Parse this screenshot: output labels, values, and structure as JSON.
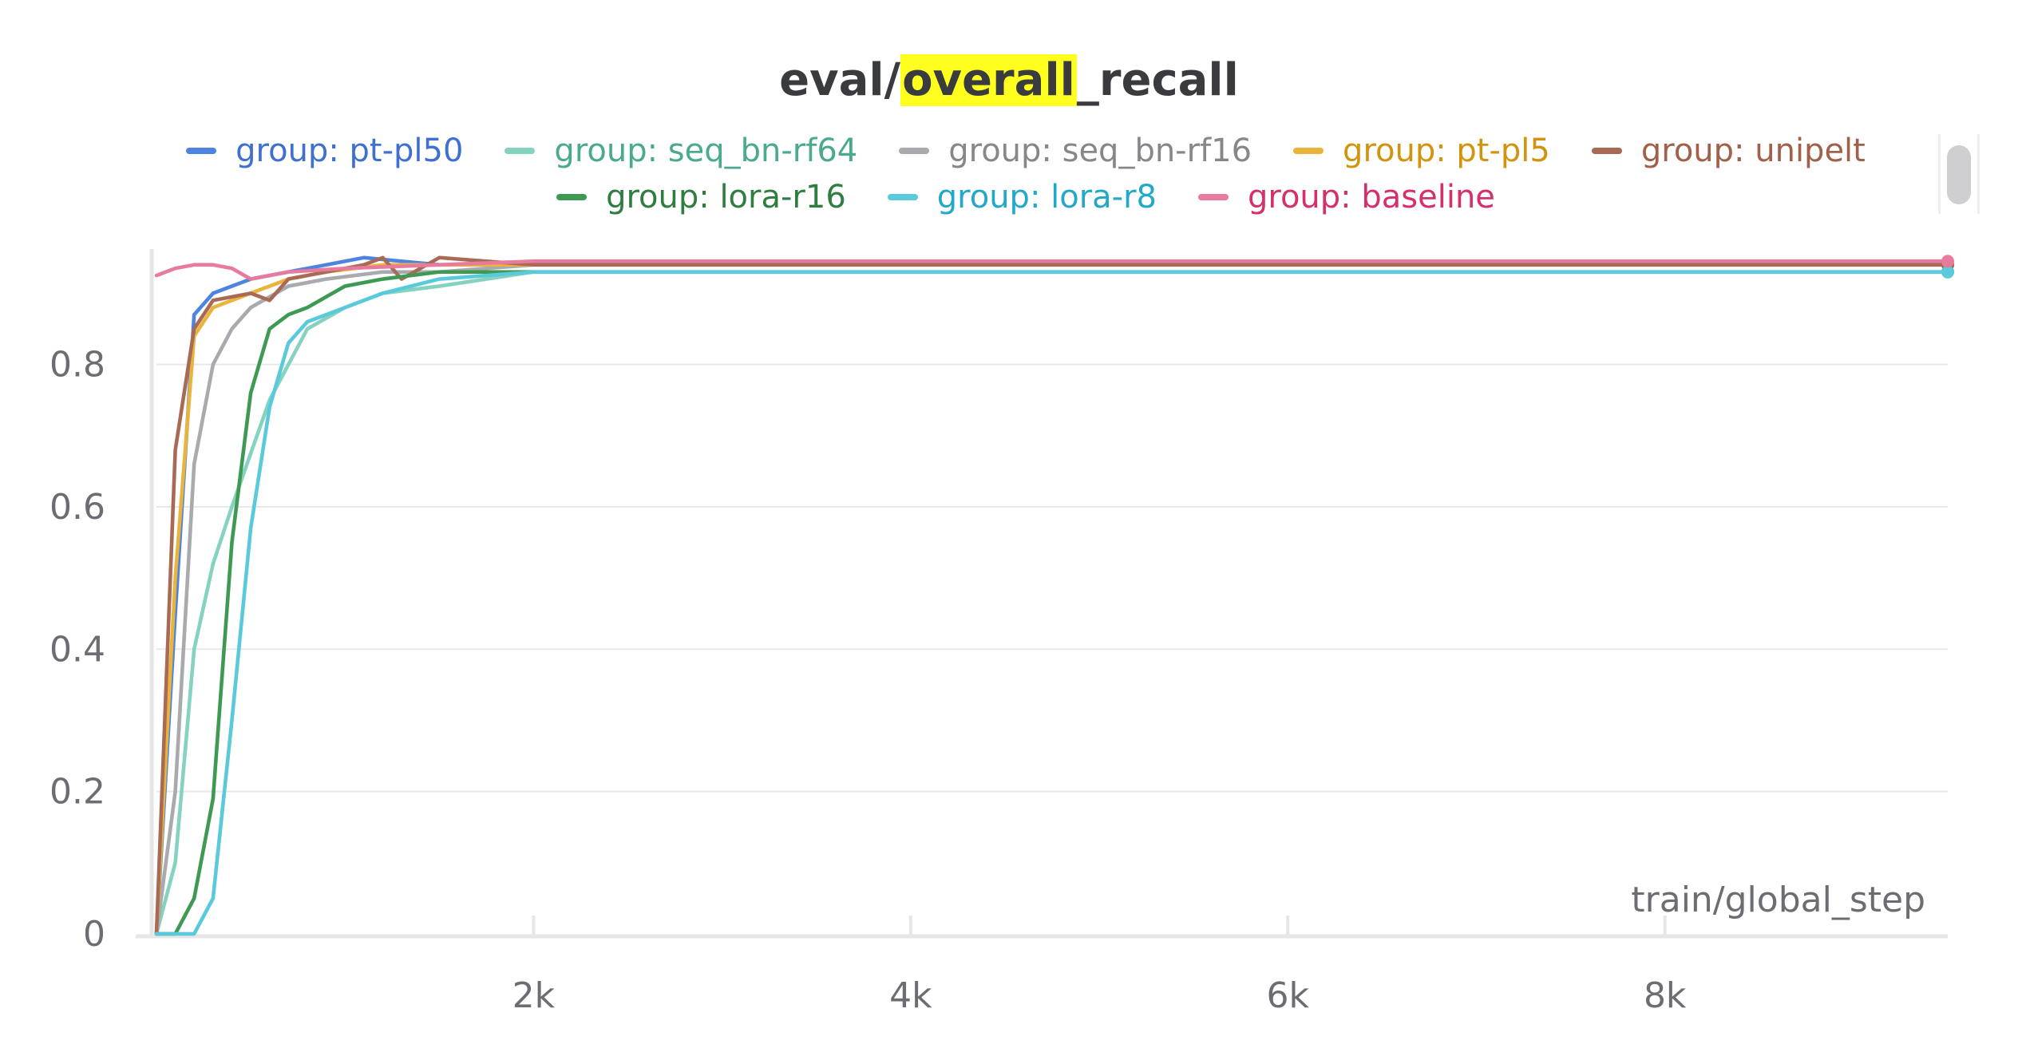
{
  "chart_data": {
    "type": "line",
    "title": {
      "prefix": "eval/",
      "highlight": "overall",
      "suffix": "_recall"
    },
    "xlabel": "train/global_step",
    "ylabel": "",
    "xlim": [
      0,
      9500
    ],
    "ylim": [
      0,
      0.97
    ],
    "x_ticks": [
      {
        "value": 2000,
        "label": "2k"
      },
      {
        "value": 4000,
        "label": "4k"
      },
      {
        "value": 6000,
        "label": "6k"
      },
      {
        "value": 8000,
        "label": "8k"
      }
    ],
    "y_ticks": [
      {
        "value": 0,
        "label": "0"
      },
      {
        "value": 0.2,
        "label": "0.2"
      },
      {
        "value": 0.4,
        "label": "0.4"
      },
      {
        "value": 0.6,
        "label": "0.6"
      },
      {
        "value": 0.8,
        "label": "0.8"
      }
    ],
    "grid": "horizontal",
    "legend_position": "top",
    "series": [
      {
        "name": "group: pt-pl50",
        "color": "#4f83e0",
        "text_color": "#3f6fd1",
        "x": [
          0,
          100,
          200,
          300,
          500,
          700,
          900,
          1100,
          1500,
          2000,
          3000,
          4000,
          5000,
          6000,
          7000,
          8000,
          9000,
          9500
        ],
        "y": [
          0.0,
          0.45,
          0.87,
          0.9,
          0.92,
          0.93,
          0.94,
          0.95,
          0.94,
          0.94,
          0.94,
          0.94,
          0.94,
          0.94,
          0.94,
          0.94,
          0.94,
          0.94
        ]
      },
      {
        "name": "group: seq_bn-rf64",
        "color": "#86d2c1",
        "text_color": "#4aa98e",
        "x": [
          0,
          100,
          200,
          300,
          400,
          600,
          800,
          1000,
          1200,
          1500,
          2000,
          3000,
          4000,
          5000,
          6000,
          7000,
          8000,
          9000,
          9500
        ],
        "y": [
          0.0,
          0.1,
          0.4,
          0.52,
          0.6,
          0.75,
          0.85,
          0.88,
          0.9,
          0.91,
          0.93,
          0.93,
          0.93,
          0.93,
          0.93,
          0.93,
          0.93,
          0.93,
          0.93
        ]
      },
      {
        "name": "group: seq_bn-rf16",
        "color": "#a9aaad",
        "text_color": "#85878b",
        "x": [
          0,
          100,
          200,
          300,
          400,
          500,
          700,
          900,
          1200,
          1500,
          2000,
          3000,
          4000,
          5000,
          6000,
          7000,
          8000,
          9000,
          9500
        ],
        "y": [
          0.0,
          0.2,
          0.66,
          0.8,
          0.85,
          0.88,
          0.91,
          0.92,
          0.93,
          0.93,
          0.94,
          0.94,
          0.94,
          0.94,
          0.94,
          0.94,
          0.94,
          0.94,
          0.94
        ]
      },
      {
        "name": "group: pt-pl5",
        "color": "#e9b43c",
        "text_color": "#d2930f",
        "x": [
          0,
          100,
          200,
          300,
          500,
          700,
          900,
          1200,
          1500,
          2000,
          3000,
          4000,
          5000,
          6000,
          7000,
          8000,
          9000,
          9500
        ],
        "y": [
          0.0,
          0.5,
          0.84,
          0.88,
          0.9,
          0.92,
          0.93,
          0.94,
          0.94,
          0.94,
          0.94,
          0.94,
          0.94,
          0.94,
          0.94,
          0.94,
          0.94,
          0.94
        ]
      },
      {
        "name": "group: unipelt",
        "color": "#a86a55",
        "text_color": "#a0604a",
        "x": [
          0,
          100,
          200,
          300,
          500,
          600,
          700,
          900,
          1100,
          1200,
          1300,
          1500,
          2000,
          3000,
          4000,
          5000,
          6000,
          7000,
          8000,
          9000,
          9500
        ],
        "y": [
          0.0,
          0.68,
          0.85,
          0.89,
          0.9,
          0.89,
          0.92,
          0.93,
          0.94,
          0.95,
          0.92,
          0.95,
          0.94,
          0.94,
          0.94,
          0.94,
          0.94,
          0.94,
          0.94,
          0.94,
          0.94
        ]
      },
      {
        "name": "group: lora-r16",
        "color": "#3e9a52",
        "text_color": "#2f7d3f",
        "x": [
          0,
          100,
          200,
          300,
          400,
          500,
          600,
          700,
          800,
          1000,
          1200,
          1500,
          2000,
          3000,
          4000,
          5000,
          6000,
          7000,
          8000,
          9000,
          9500
        ],
        "y": [
          0.0,
          0.0,
          0.05,
          0.19,
          0.55,
          0.76,
          0.85,
          0.87,
          0.88,
          0.91,
          0.92,
          0.93,
          0.93,
          0.93,
          0.93,
          0.93,
          0.93,
          0.93,
          0.93,
          0.93,
          0.93
        ]
      },
      {
        "name": "group: lora-r8",
        "color": "#5ac9dc",
        "text_color": "#22a9c7",
        "x": [
          0,
          100,
          200,
          300,
          400,
          500,
          600,
          700,
          800,
          1000,
          1200,
          1500,
          2000,
          3000,
          4000,
          5000,
          6000,
          7000,
          8000,
          9000,
          9500
        ],
        "y": [
          0.0,
          0.0,
          0.0,
          0.05,
          0.3,
          0.57,
          0.74,
          0.83,
          0.86,
          0.88,
          0.9,
          0.92,
          0.93,
          0.93,
          0.93,
          0.93,
          0.93,
          0.93,
          0.93,
          0.93,
          0.93
        ]
      },
      {
        "name": "group: baseline",
        "color": "#e87a9e",
        "text_color": "#d62f6e",
        "x": [
          0,
          100,
          200,
          300,
          400,
          500,
          700,
          1000,
          1500,
          2000,
          3000,
          4000,
          5000,
          6000,
          7000,
          8000,
          9000,
          9500
        ],
        "y": [
          0.925,
          0.935,
          0.94,
          0.94,
          0.935,
          0.92,
          0.93,
          0.935,
          0.94,
          0.945,
          0.945,
          0.945,
          0.945,
          0.945,
          0.945,
          0.945,
          0.945,
          0.945
        ]
      }
    ]
  }
}
